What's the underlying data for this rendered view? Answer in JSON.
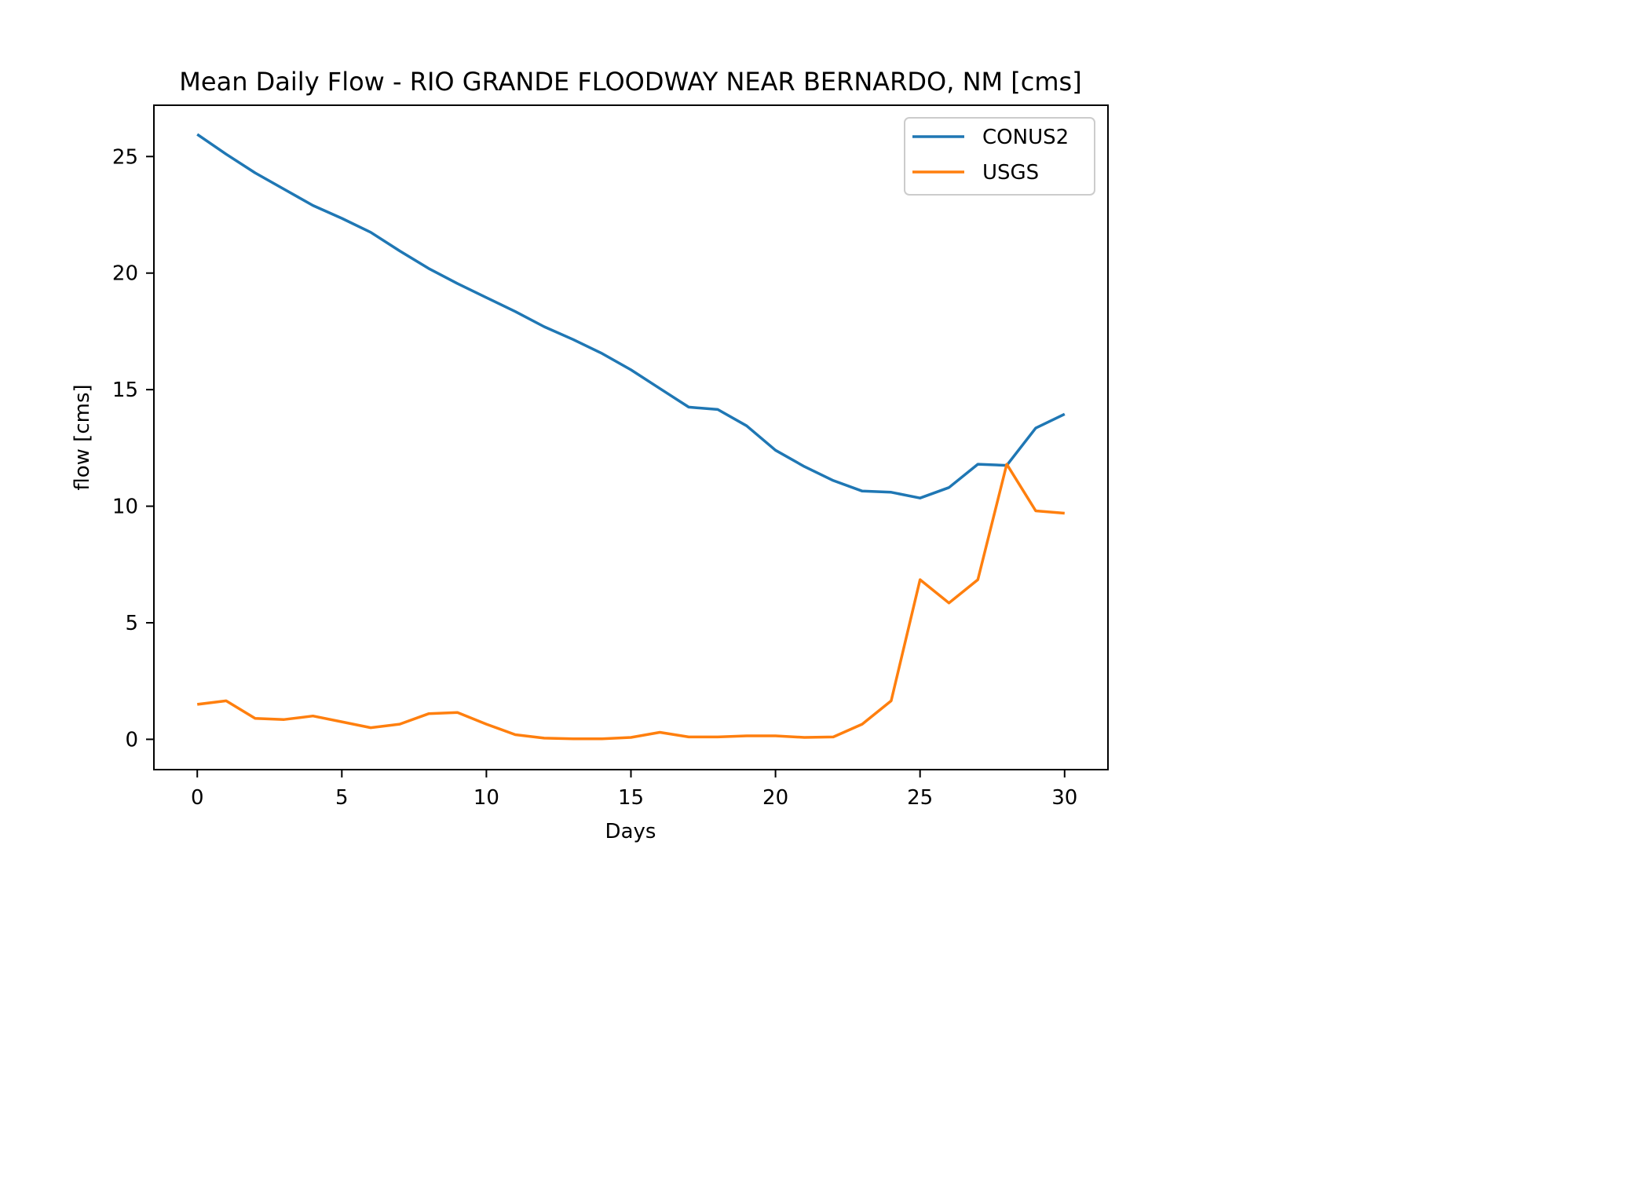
{
  "chart_data": {
    "type": "line",
    "title": "Mean Daily Flow - RIO GRANDE FLOODWAY NEAR BERNARDO, NM [cms]",
    "xlabel": "Days",
    "ylabel": "flow [cms]",
    "xlim": [
      -1.5,
      31.5
    ],
    "ylim": [
      -1.3,
      27.2
    ],
    "xticks": [
      0,
      5,
      10,
      15,
      20,
      25,
      30
    ],
    "yticks": [
      0,
      5,
      10,
      15,
      20,
      25
    ],
    "grid": false,
    "legend_position": "upper-right",
    "x": [
      0,
      1,
      2,
      3,
      4,
      5,
      6,
      7,
      8,
      9,
      10,
      11,
      12,
      13,
      14,
      15,
      16,
      17,
      18,
      19,
      20,
      21,
      22,
      23,
      24,
      25,
      26,
      27,
      28,
      29,
      30
    ],
    "series": [
      {
        "name": "CONUS2",
        "color": "#1f77b4",
        "values": [
          25.95,
          25.1,
          24.3,
          23.6,
          22.9,
          22.35,
          21.75,
          20.95,
          20.2,
          19.55,
          18.95,
          18.35,
          17.7,
          17.15,
          16.55,
          15.85,
          15.05,
          14.25,
          14.15,
          13.45,
          12.4,
          11.7,
          11.1,
          10.65,
          10.6,
          10.35,
          10.8,
          11.8,
          11.75,
          13.35,
          13.95
        ]
      },
      {
        "name": "USGS",
        "color": "#ff7f0e",
        "values": [
          1.5,
          1.65,
          0.9,
          0.85,
          1.0,
          0.75,
          0.5,
          0.65,
          1.1,
          1.15,
          0.65,
          0.2,
          0.05,
          0.02,
          0.02,
          0.08,
          0.3,
          0.1,
          0.1,
          0.15,
          0.15,
          0.08,
          0.1,
          0.65,
          1.65,
          6.85,
          5.85,
          6.85,
          11.8,
          9.8,
          9.7
        ]
      }
    ]
  }
}
